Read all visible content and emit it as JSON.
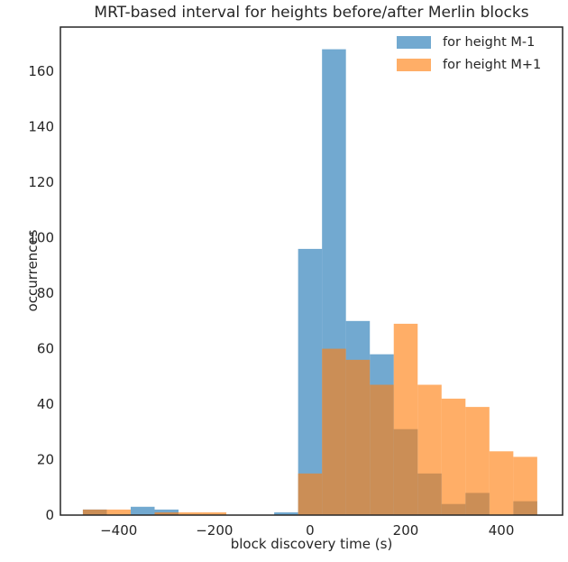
{
  "chart_data": {
    "type": "histogram",
    "title": "MRT-based interval for heights before/after Merlin blocks",
    "xlabel": "block discovery time (s)",
    "ylabel": "occurrences",
    "bin_edges": [
      -475,
      -425,
      -375,
      -325,
      -275,
      -225,
      -175,
      -125,
      -75,
      -25,
      25,
      75,
      125,
      175,
      225,
      275,
      325,
      375,
      425,
      475,
      525
    ],
    "series": [
      {
        "name": "for height M-1",
        "color": "#1f77b4",
        "fill_alpha": 0.63,
        "counts": [
          2,
          0,
          3,
          2,
          0,
          0,
          0,
          0,
          1,
          96,
          168,
          70,
          58,
          31,
          15,
          4,
          8,
          0,
          5,
          0
        ]
      },
      {
        "name": "for height M+1",
        "color": "#ff7f0e",
        "fill_alpha": 0.63,
        "counts": [
          2,
          2,
          0,
          1,
          1,
          1,
          0,
          0,
          0,
          15,
          60,
          56,
          47,
          69,
          47,
          42,
          39,
          23,
          21,
          0
        ]
      }
    ],
    "xticks": {
      "values": [
        -400,
        -200,
        0,
        200,
        400
      ],
      "labels": [
        "−400",
        "−200",
        "0",
        "200",
        "400"
      ]
    },
    "yticks": {
      "values": [
        0,
        20,
        40,
        60,
        80,
        100,
        120,
        140,
        160
      ],
      "labels": [
        "0",
        "20",
        "40",
        "60",
        "80",
        "100",
        "120",
        "140",
        "160"
      ]
    },
    "xlim": [
      -522,
      528
    ],
    "ylim": [
      0,
      176
    ],
    "grid": false,
    "legend_position": "upper right",
    "text_color": "#262626",
    "spine_color": "#262626",
    "background": "#ffffff"
  }
}
